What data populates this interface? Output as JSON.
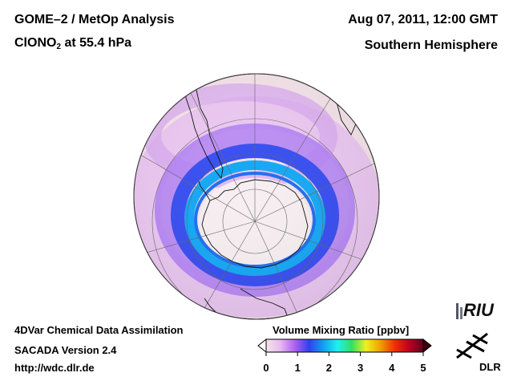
{
  "header": {
    "title_line1": "GOME–2 / MetOp Analysis",
    "title_line2_prefix": "ClONO",
    "title_line2_sub": "2",
    "title_line2_suffix": " at 55.4 hPa",
    "datetime": "Aug 07, 2011, 12:00 GMT",
    "hemisphere": "Southern Hemisphere"
  },
  "footer": {
    "line1": "4DVar Chemical Data Assimilation",
    "line2": "SACADA Version 2.4",
    "line3": "http://wdc.dlr.de"
  },
  "colorbar": {
    "title": "Volume Mixing Ratio [ppbv]",
    "min": 0,
    "max": 5,
    "ticks": [
      "0",
      "1",
      "2",
      "3",
      "4",
      "5"
    ],
    "colors": [
      "#f4e4ea",
      "#e8b8f0",
      "#b060f0",
      "#3040f0",
      "#10a0f0",
      "#20f0f0",
      "#30e060",
      "#f0f020",
      "#f0a000",
      "#f03000",
      "#c00020",
      "#600020"
    ]
  },
  "map": {
    "projection": "orthographic, south pole centered",
    "field_colors": {
      "background": "#f4e4ea",
      "ring_outer": "#e0b0f0",
      "ring_mid": "#8a6ef0",
      "ring_core": "#2a5cf0",
      "ring_inner": "#16a0f0",
      "vortex_interior": "#f6eef0"
    }
  },
  "logos": {
    "riu": "RIU",
    "dlr": "DLR"
  }
}
